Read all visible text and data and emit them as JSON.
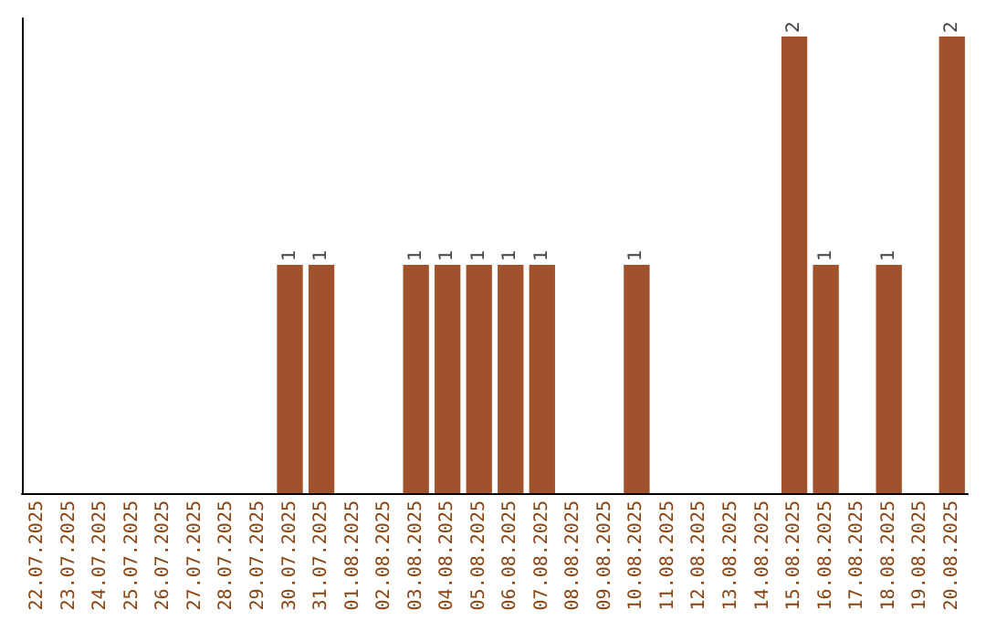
{
  "chart_data": {
    "type": "bar",
    "categories": [
      "22.07.2025",
      "23.07.2025",
      "24.07.2025",
      "25.07.2025",
      "26.07.2025",
      "27.07.2025",
      "28.07.2025",
      "29.07.2025",
      "30.07.2025",
      "31.07.2025",
      "01.08.2025",
      "02.08.2025",
      "03.08.2025",
      "04.08.2025",
      "05.08.2025",
      "06.08.2025",
      "07.08.2025",
      "08.08.2025",
      "09.08.2025",
      "10.08.2025",
      "11.08.2025",
      "12.08.2025",
      "13.08.2025",
      "14.08.2025",
      "15.08.2025",
      "16.08.2025",
      "17.08.2025",
      "18.08.2025",
      "19.08.2025",
      "20.08.2025"
    ],
    "values": [
      0,
      0,
      0,
      0,
      0,
      0,
      0,
      0,
      1,
      1,
      0,
      0,
      1,
      1,
      1,
      1,
      1,
      0,
      0,
      1,
      0,
      0,
      0,
      0,
      2,
      1,
      0,
      1,
      0,
      2
    ],
    "value_labels": [
      null,
      null,
      null,
      null,
      null,
      null,
      null,
      null,
      "1",
      "1",
      null,
      null,
      "1",
      "1",
      "1",
      "1",
      "1",
      null,
      null,
      "1",
      null,
      null,
      null,
      null,
      "2",
      "1",
      null,
      "1",
      null,
      "2"
    ],
    "color": "#a0522d",
    "tick_labels": "x"
  }
}
